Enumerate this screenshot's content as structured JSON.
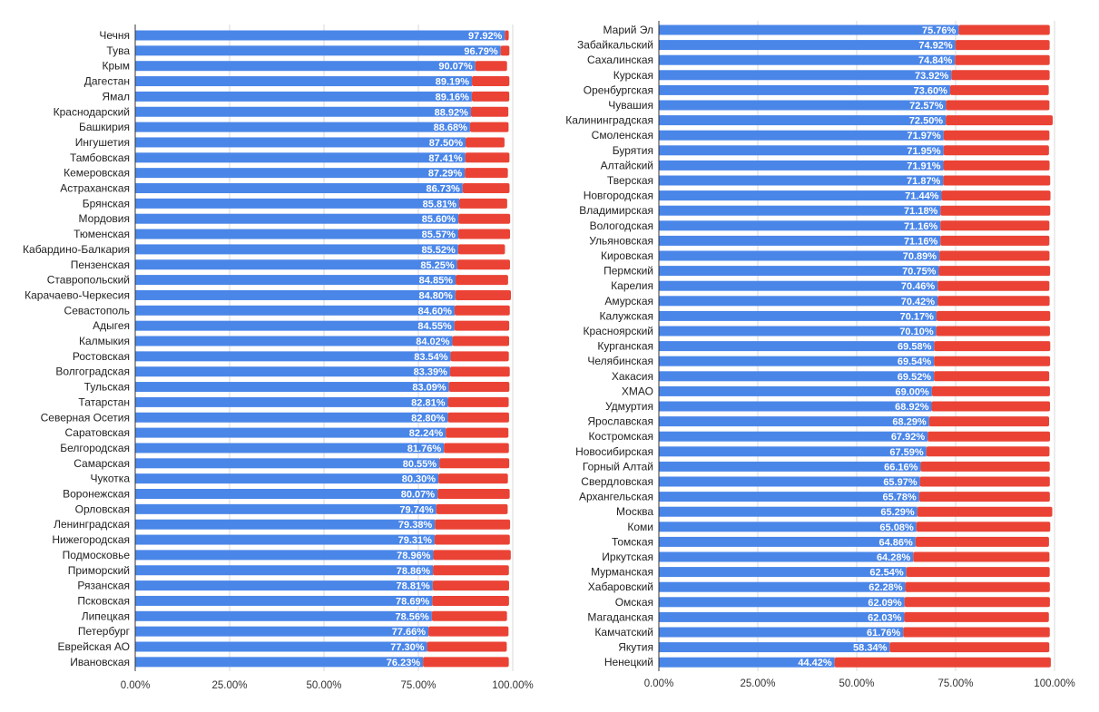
{
  "colors": {
    "primary": "#4a86e8",
    "remainder": "#ea4335",
    "grid": "#d9d9d9",
    "axis": "#333333"
  },
  "chart_data": [
    {
      "type": "bar",
      "orientation": "horizontal",
      "stacked": true,
      "xlim": [
        0,
        100
      ],
      "x_ticks": [
        "0.00%",
        "25.00%",
        "50.00%",
        "75.00%",
        "100.00%"
      ],
      "grid": true,
      "categories": [
        "Чечня",
        "Тува",
        "Крым",
        "Дагестан",
        "Ямал",
        "Краснодарский",
        "Башкирия",
        "Ингушетия",
        "Тамбовская",
        "Кемеровская",
        "Астраханская",
        "Брянская",
        "Мордовия",
        "Тюменская",
        "Кабардино-Балкария",
        "Пензенская",
        "Ставропольский",
        "Карачаево-Черкесия",
        "Севастополь",
        "Адыгея",
        "Калмыкия",
        "Ростовская",
        "Волгоградская",
        "Тульская",
        "Татарстан",
        "Северная Осетия",
        "Саратовская",
        "Белгородская",
        "Самарская",
        "Чукотка",
        "Воронежская",
        "Орловская",
        "Ленинградская",
        "Нижегородская",
        "Подмосковье",
        "Приморский",
        "Рязанская",
        "Псковская",
        "Липецкая",
        "Петербург",
        "Еврейская АО",
        "Ивановская"
      ],
      "values": [
        97.92,
        96.79,
        90.07,
        89.19,
        89.16,
        88.92,
        88.68,
        87.5,
        87.41,
        87.29,
        86.73,
        85.81,
        85.6,
        85.57,
        85.52,
        85.25,
        84.85,
        84.8,
        84.6,
        84.55,
        84.02,
        83.54,
        83.39,
        83.09,
        82.81,
        82.8,
        82.24,
        81.76,
        80.55,
        80.3,
        80.07,
        79.74,
        79.38,
        79.31,
        78.96,
        78.86,
        78.81,
        78.69,
        78.56,
        77.66,
        77.3,
        76.23
      ],
      "value_labels": [
        "97.92%",
        "96.79%",
        "90.07%",
        "89.19%",
        "89.16%",
        "88.92%",
        "88.68%",
        "87.50%",
        "87.41%",
        "87.29%",
        "86.73%",
        "85.81%",
        "85.60%",
        "85.57%",
        "85.52%",
        "85.25%",
        "84.85%",
        "84.80%",
        "84.60%",
        "84.55%",
        "84.02%",
        "83.54%",
        "83.39%",
        "83.09%",
        "82.81%",
        "82.80%",
        "82.24%",
        "81.76%",
        "80.55%",
        "80.30%",
        "80.07%",
        "79.74%",
        "79.38%",
        "79.31%",
        "78.96%",
        "78.86%",
        "78.81%",
        "78.69%",
        "78.56%",
        "77.66%",
        "77.30%",
        "76.23%"
      ],
      "remainder_values": [
        1.5,
        2.8,
        8.9,
        10.4,
        10.4,
        10.4,
        10.7,
        10.8,
        12.2,
        11.9,
        12.9,
        13.2,
        14.2,
        14.2,
        12.9,
        14.5,
        14.4,
        15.2,
        15.1,
        15.0,
        15.5,
        15.9,
        16.3,
        16.5,
        16.6,
        16.7,
        17.1,
        17.7,
        19.0,
        18.9,
        19.6,
        19.4,
        20.4,
        20.4,
        21.0,
        20.6,
        20.7,
        20.8,
        20.4,
        21.7,
        21.6,
        23.2
      ]
    },
    {
      "type": "bar",
      "orientation": "horizontal",
      "stacked": true,
      "xlim": [
        0,
        100
      ],
      "x_ticks": [
        "0.00%",
        "25.00%",
        "50.00%",
        "75.00%",
        "100.00%"
      ],
      "grid": true,
      "categories": [
        "Марий Эл",
        "Забайкальский",
        "Сахалинская",
        "Курская",
        "Оренбургская",
        "Чувашия",
        "Калининградская",
        "Смоленская",
        "Бурятия",
        "Алтайский",
        "Тверская",
        "Новгородская",
        "Владимирская",
        "Вологодская",
        "Ульяновская",
        "Кировская",
        "Пермский",
        "Карелия",
        "Амурская",
        "Калужская",
        "Красноярский",
        "Курганская",
        "Челябинская",
        "Хакасия",
        "ХМАО",
        "Удмуртия",
        "Ярославская",
        "Костромская",
        "Новосибирская",
        "Горный Алтай",
        "Свердловская",
        "Архангельская",
        "Москва",
        "Коми",
        "Томская",
        "Иркутская",
        "Мурманская",
        "Хабаровский",
        "Омская",
        "Магаданская",
        "Камчатский",
        "Якутия",
        "Ненецкий"
      ],
      "values": [
        75.76,
        74.92,
        74.84,
        73.92,
        73.6,
        72.57,
        72.5,
        71.97,
        71.95,
        71.91,
        71.87,
        71.44,
        71.18,
        71.16,
        71.16,
        70.89,
        70.75,
        70.46,
        70.42,
        70.17,
        70.1,
        69.58,
        69.54,
        69.52,
        69.0,
        68.92,
        68.29,
        67.92,
        67.59,
        66.16,
        65.97,
        65.78,
        65.29,
        65.08,
        64.86,
        64.28,
        62.54,
        62.28,
        62.09,
        62.03,
        61.76,
        58.34,
        44.42
      ],
      "value_labels": [
        "75.76%",
        "74.92%",
        "74.84%",
        "73.92%",
        "73.60%",
        "72.57%",
        "72.50%",
        "71.97%",
        "71.95%",
        "71.91%",
        "71.87%",
        "71.44%",
        "71.18%",
        "71.16%",
        "71.16%",
        "70.89%",
        "70.75%",
        "70.46%",
        "70.42%",
        "70.17%",
        "70.10%",
        "69.58%",
        "69.54%",
        "69.52%",
        "69.00%",
        "68.92%",
        "68.29%",
        "67.92%",
        "67.59%",
        "66.16%",
        "65.97%",
        "65.78%",
        "65.29%",
        "65.08%",
        "64.86%",
        "64.28%",
        "62.54%",
        "62.28%",
        "62.09%",
        "62.03%",
        "61.76%",
        "58.34%",
        "44.42%"
      ],
      "remainder_values": [
        23.5,
        24.3,
        24.4,
        25.3,
        25.4,
        26.6,
        27.5,
        27.2,
        27.1,
        27.3,
        27.5,
        28.0,
        28.2,
        28.0,
        28.0,
        28.3,
        28.6,
        28.7,
        28.8,
        29.2,
        29.2,
        29.8,
        29.8,
        29.6,
        30.3,
        30.4,
        30.8,
        31.4,
        31.6,
        33.1,
        33.3,
        33.5,
        34.6,
        34.3,
        34.2,
        34.9,
        36.7,
        37.0,
        37.2,
        37.0,
        37.5,
        40.8,
        55.1
      ]
    }
  ]
}
